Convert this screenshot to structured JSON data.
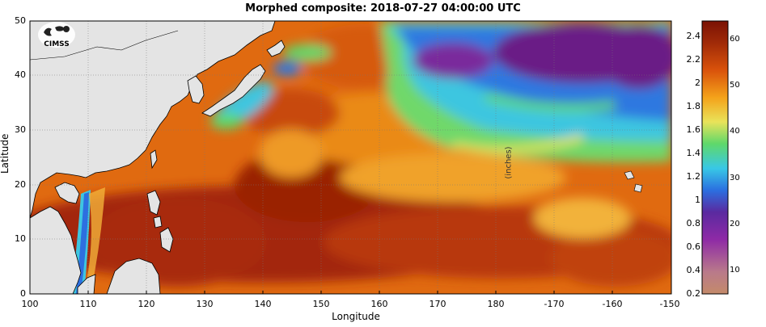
{
  "title": "Morphed composite: 2018-07-27 04:00:00 UTC",
  "xlabel": "Longitude",
  "ylabel": "Latitude",
  "x_ticks": [
    "100",
    "110",
    "120",
    "130",
    "140",
    "150",
    "160",
    "170",
    "180",
    "-170",
    "-160",
    "-150"
  ],
  "y_ticks": [
    "50",
    "40",
    "30",
    "20",
    "10",
    "0"
  ],
  "colorbar_left_ticks": [
    "2.4",
    "2.2",
    "2",
    "1.8",
    "1.6",
    "1.4",
    "1.2",
    "1",
    "0.8",
    "0.6",
    "0.4",
    "0.2"
  ],
  "colorbar_right_ticks": [
    "60",
    "50",
    "40",
    "30",
    "20",
    "10"
  ],
  "units": "(inches)",
  "logo_text": "CIMSS",
  "colors": {
    "land": "#e4e4e4",
    "moist_max": "#8b1a06",
    "moist_high": "#d9520b",
    "moist_mid": "#f4a21a",
    "moderate": "#e9e35a",
    "green": "#5fd86a",
    "cyan": "#38c8e6",
    "blue": "#2b6fe0",
    "purple": "#6a1a86",
    "violet": "#8e2aa6"
  }
}
